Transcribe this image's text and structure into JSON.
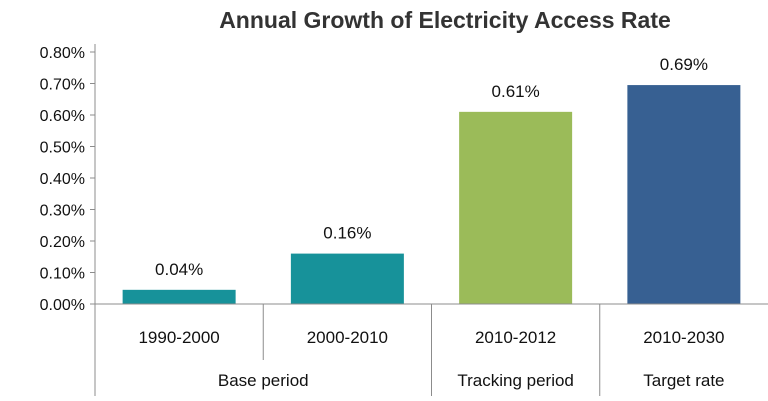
{
  "chart_data": {
    "type": "bar",
    "title": "Annual Growth of Electricity Access Rate",
    "xlabel": "",
    "ylabel": "",
    "ylim": [
      0,
      0.8
    ],
    "grid": false,
    "legend": "none",
    "y_ticks": [
      "0.00%",
      "0.10%",
      "0.20%",
      "0.30%",
      "0.40%",
      "0.50%",
      "0.60%",
      "0.70%",
      "0.80%"
    ],
    "categories": [
      "1990-2000",
      "2000-2010",
      "2010-2012",
      "2010-2030"
    ],
    "values": [
      0.045,
      0.16,
      0.61,
      0.695
    ],
    "data_labels": [
      "0.04%",
      "0.16%",
      "0.61%",
      "0.69%"
    ],
    "colors": [
      "#17929a",
      "#17929a",
      "#9bbb59",
      "#376092"
    ],
    "groups": [
      {
        "label": "Base period",
        "categories": [
          "1990-2000",
          "2000-2010"
        ]
      },
      {
        "label": "Tracking period",
        "categories": [
          "2010-2012"
        ]
      },
      {
        "label": "Target rate",
        "categories": [
          "2010-2030"
        ]
      }
    ]
  }
}
